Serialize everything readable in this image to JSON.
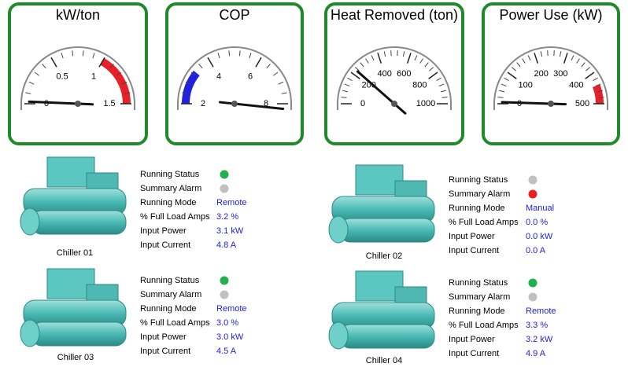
{
  "gauges": [
    {
      "title": "kW/ton",
      "range": [
        0,
        1.5
      ],
      "ticks": [
        0,
        0.5,
        1,
        1.5
      ],
      "value": 0.02,
      "zones": [
        {
          "from": 1,
          "to": 1.5,
          "color": "#e8202a"
        }
      ]
    },
    {
      "title": "COP",
      "range": [
        2,
        8
      ],
      "ticks": [
        2,
        4,
        6,
        8
      ],
      "value": 8.2,
      "zones": [
        {
          "from": 2,
          "to": 3.3,
          "color": "#2020e0"
        }
      ]
    },
    {
      "title": "Heat Removed (ton)",
      "range": [
        0,
        1000
      ],
      "ticks": [
        0,
        200,
        400,
        600,
        800,
        1000
      ],
      "value": 230,
      "zones": []
    },
    {
      "title": "Power Use (kW)",
      "range": [
        0,
        500
      ],
      "ticks": [
        0,
        100,
        200,
        300,
        400,
        500
      ],
      "value": 5,
      "zones": [
        {
          "from": 440,
          "to": 500,
          "color": "#e8202a"
        }
      ]
    }
  ],
  "chillers": [
    {
      "name": "Chiller 01",
      "labels": [
        "Running Status",
        "Summary Alarm",
        "Running Mode",
        "% Full Load Amps",
        "Input Power",
        "Input Current"
      ],
      "status_colors": [
        "#20b050",
        "#c0c0c0"
      ],
      "values": [
        "Remote",
        "3.2 %",
        "3.1 kW",
        "4.8 A"
      ]
    },
    {
      "name": "Chiller 02",
      "labels": [
        "Running Status",
        "Summary Alarm",
        "Running Mode",
        "% Full Load Amps",
        "Input Power",
        "Input Current"
      ],
      "status_colors": [
        "#c0c0c0",
        "#e82020"
      ],
      "values": [
        "Manual",
        "0.0 %",
        "0.0 kW",
        "0.0 A"
      ]
    },
    {
      "name": "Chiller 03",
      "labels": [
        "Running Status",
        "Summary Alarm",
        "Running Mode",
        "% Full Load Amps",
        "Input Power",
        "Input Current"
      ],
      "status_colors": [
        "#20b050",
        "#c0c0c0"
      ],
      "values": [
        "Remote",
        "3.0 %",
        "3.0 kW",
        "4.5 A"
      ]
    },
    {
      "name": "Chiller 04",
      "labels": [
        "Running Status",
        "Summary Alarm",
        "Running Mode",
        "% Full Load Amps",
        "Input Power",
        "Input Current"
      ],
      "status_colors": [
        "#20b050",
        "#c0c0c0"
      ],
      "values": [
        "Remote",
        "3.3 %",
        "3.2 kW",
        "4.9 A"
      ]
    }
  ]
}
